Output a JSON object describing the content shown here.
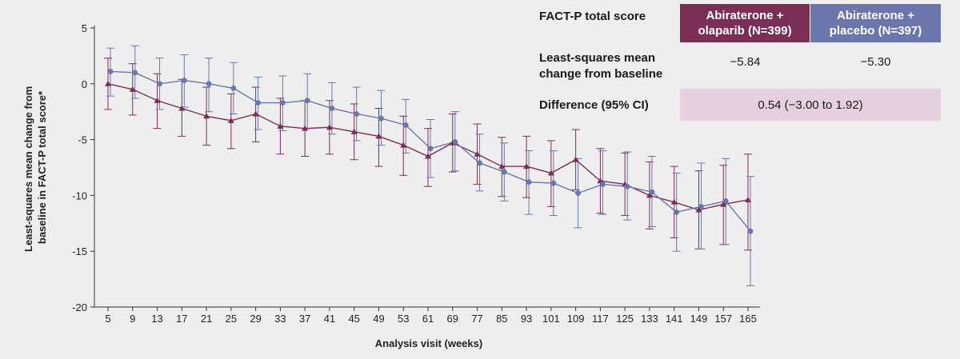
{
  "chart_data": {
    "type": "line",
    "xlabel": "Analysis visit (weeks)",
    "ylabel": [
      "Least-squares mean change from",
      "baseline in FACT-P total score*"
    ],
    "ylim": [
      -20,
      5
    ],
    "yticks": [
      5,
      0,
      -5,
      -10,
      -15,
      -20
    ],
    "categories": [
      "5",
      "9",
      "13",
      "17",
      "21",
      "25",
      "29",
      "33",
      "37",
      "41",
      "45",
      "49",
      "53",
      "61",
      "69",
      "77",
      "85",
      "93",
      "101",
      "109",
      "117",
      "125",
      "133",
      "141",
      "149",
      "157",
      "165"
    ],
    "grid": false,
    "series": [
      {
        "name": "Abiraterone + olaparib (N=399)",
        "color": "#7b2e55",
        "marker": "triangle",
        "values": [
          0.0,
          -0.5,
          -1.5,
          -2.2,
          -2.9,
          -3.3,
          -2.7,
          -3.8,
          -4.0,
          -3.9,
          -4.3,
          -4.7,
          -5.5,
          -6.5,
          -5.3,
          -6.3,
          -7.4,
          -7.4,
          -8.0,
          -6.8,
          -8.7,
          -9.0,
          -10.0,
          -10.6,
          -11.3,
          -10.8,
          -10.4
        ],
        "lower": [
          -2.3,
          -2.8,
          -4.0,
          -4.7,
          -5.5,
          -5.8,
          -5.2,
          -6.3,
          -6.5,
          -6.3,
          -6.8,
          -7.4,
          -8.2,
          -9.2,
          -7.9,
          -9.0,
          -10.1,
          -10.2,
          -11.0,
          -9.5,
          -11.6,
          -11.8,
          -13.0,
          -13.8,
          -14.8,
          -14.4,
          -14.9
        ],
        "upper": [
          2.3,
          1.8,
          0.9,
          0.4,
          -0.3,
          -0.9,
          -0.3,
          -1.3,
          -1.5,
          -1.5,
          -1.8,
          -2.2,
          -2.9,
          -4.0,
          -2.7,
          -3.6,
          -4.8,
          -4.7,
          -5.1,
          -4.1,
          -5.8,
          -6.2,
          -7.0,
          -7.4,
          -7.8,
          -7.3,
          -6.3
        ]
      },
      {
        "name": "Abiraterone + placebo (N=397)",
        "color": "#6a76ac",
        "marker": "circle",
        "values": [
          1.1,
          1.0,
          0.0,
          0.3,
          0.0,
          -0.4,
          -1.7,
          -1.7,
          -1.5,
          -2.2,
          -2.7,
          -3.1,
          -3.7,
          -5.8,
          -5.2,
          -7.1,
          -7.9,
          -8.8,
          -8.9,
          -9.8,
          -9.0,
          -9.2,
          -9.7,
          -11.5,
          -11.0,
          -10.5,
          -13.2
        ],
        "lower": [
          -1.1,
          -1.3,
          -2.3,
          -2.1,
          -2.5,
          -2.7,
          -4.1,
          -4.2,
          -4.0,
          -4.5,
          -5.1,
          -5.5,
          -6.2,
          -8.4,
          -7.8,
          -9.6,
          -10.5,
          -11.7,
          -11.8,
          -12.9,
          -11.7,
          -12.2,
          -12.8,
          -15.0,
          -14.8,
          -14.4,
          -18.1
        ],
        "upper": [
          3.2,
          3.4,
          2.3,
          2.6,
          2.3,
          1.9,
          0.6,
          0.7,
          0.9,
          0.1,
          -0.3,
          -0.6,
          -1.4,
          -3.2,
          -2.5,
          -4.5,
          -5.3,
          -6.0,
          -6.0,
          -6.7,
          -6.0,
          -6.1,
          -6.5,
          -8.0,
          -7.1,
          -6.7,
          -8.3
        ]
      }
    ]
  },
  "stats_table": {
    "header_label": "FACT-P total score",
    "col_olaparib": [
      "Abiraterone +",
      "olaparib (N=399)"
    ],
    "col_placebo": [
      "Abiraterone +",
      "placebo (N=397)"
    ],
    "ls_label": [
      "Least-squares mean",
      "change from baseline"
    ],
    "ls_olaparib": "−5.84",
    "ls_placebo": "−5.30",
    "diff_label": "Difference (95% CI)",
    "diff_value": "0.54 (−3.00 to 1.92)"
  }
}
